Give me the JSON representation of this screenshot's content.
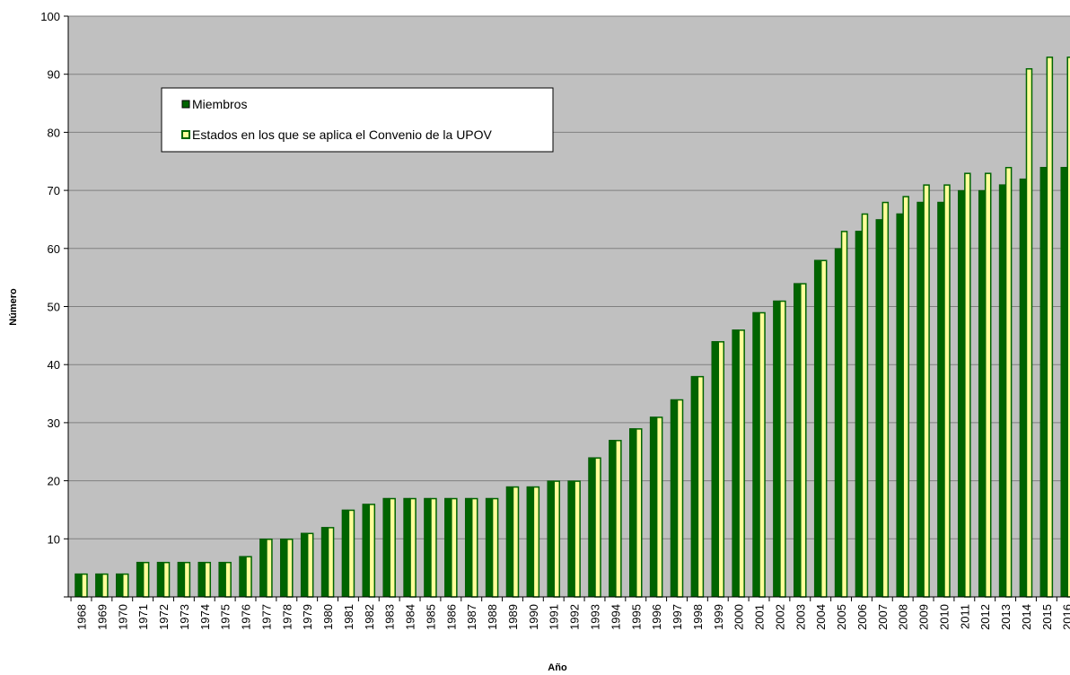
{
  "chart_data": {
    "type": "bar",
    "title": "",
    "xlabel": "Año",
    "ylabel": "Número",
    "ylim": [
      0,
      100
    ],
    "yticks": [
      10,
      20,
      30,
      40,
      50,
      60,
      70,
      80,
      90,
      100
    ],
    "grid": true,
    "legend_position": "top-left",
    "categories": [
      "1968",
      "1969",
      "1970",
      "1971",
      "1972",
      "1973",
      "1974",
      "1975",
      "1976",
      "1977",
      "1978",
      "1979",
      "1980",
      "1981",
      "1982",
      "1983",
      "1984",
      "1985",
      "1986",
      "1987",
      "1988",
      "1989",
      "1990",
      "1991",
      "1992",
      "1993",
      "1994",
      "1995",
      "1996",
      "1997",
      "1998",
      "1999",
      "2000",
      "2001",
      "2002",
      "2003",
      "2004",
      "2005",
      "2006",
      "2007",
      "2008",
      "2009",
      "2010",
      "2011",
      "2012",
      "2013",
      "2014",
      "2015",
      "2016"
    ],
    "series": [
      {
        "name": "Miembros",
        "color": "#006400",
        "values": [
          4,
          4,
          4,
          6,
          6,
          6,
          6,
          6,
          7,
          10,
          10,
          11,
          12,
          15,
          16,
          17,
          17,
          17,
          17,
          17,
          17,
          19,
          19,
          20,
          20,
          24,
          27,
          29,
          31,
          34,
          38,
          44,
          46,
          49,
          51,
          54,
          58,
          60,
          63,
          65,
          66,
          68,
          68,
          70,
          70,
          71,
          72,
          74,
          74
        ]
      },
      {
        "name": "Estados en los que se aplica el Convenio de la UPOV",
        "color": "#FFFF99",
        "values": [
          4,
          4,
          4,
          6,
          6,
          6,
          6,
          6,
          7,
          10,
          10,
          11,
          12,
          15,
          16,
          17,
          17,
          17,
          17,
          17,
          17,
          19,
          19,
          20,
          20,
          24,
          27,
          29,
          31,
          34,
          38,
          44,
          46,
          49,
          51,
          54,
          58,
          63,
          66,
          68,
          69,
          71,
          71,
          73,
          73,
          74,
          91,
          93,
          93
        ]
      }
    ]
  },
  "colors": {
    "plot_background": "#C0C0C0",
    "gridline": "#808080",
    "bar_border": "#006400"
  }
}
